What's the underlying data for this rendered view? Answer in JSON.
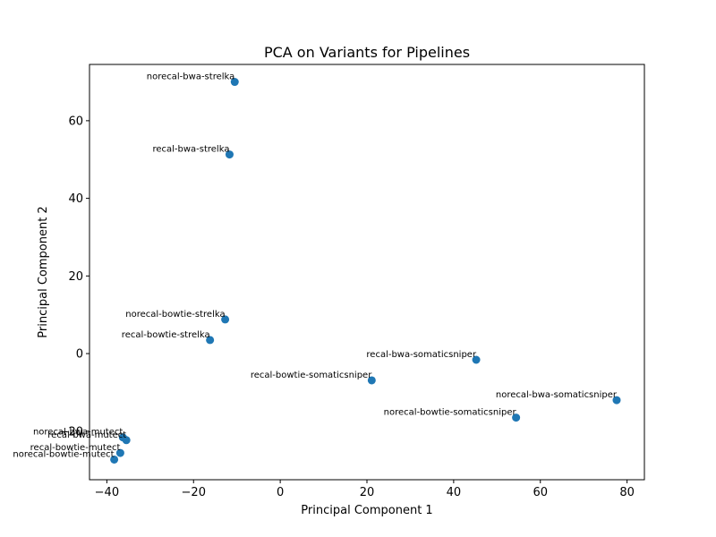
{
  "chart_data": {
    "type": "scatter",
    "title": "PCA on Variants for Pipelines",
    "xlabel": "Principal Component 1",
    "ylabel": "Principal Component 2",
    "xlim": [
      -44,
      84
    ],
    "ylim": [
      -32.5,
      74.5
    ],
    "xticks": [
      -40,
      -20,
      0,
      20,
      40,
      60,
      80
    ],
    "yticks": [
      -20,
      0,
      20,
      40,
      60
    ],
    "grid": false,
    "marker_color": "#1f77b4",
    "points": [
      {
        "label": "norecal-bwa-strelka",
        "x": -10.5,
        "y": 70.0
      },
      {
        "label": "recal-bwa-strelka",
        "x": -11.7,
        "y": 51.3
      },
      {
        "label": "norecal-bowtie-strelka",
        "x": -12.7,
        "y": 8.8
      },
      {
        "label": "recal-bowtie-strelka",
        "x": -16.2,
        "y": 3.5
      },
      {
        "label": "recal-bwa-somaticsniper",
        "x": 45.2,
        "y": -1.6
      },
      {
        "label": "recal-bowtie-somaticsniper",
        "x": 21.1,
        "y": -6.9
      },
      {
        "label": "norecal-bwa-somaticsniper",
        "x": 77.6,
        "y": -12.0
      },
      {
        "label": "norecal-bowtie-somaticsniper",
        "x": 54.4,
        "y": -16.5
      },
      {
        "label": "norecal-bwa-mutect",
        "x": -36.3,
        "y": -21.6
      },
      {
        "label": "recal-bwa-mutect",
        "x": -35.5,
        "y": -22.3
      },
      {
        "label": "recal-bowtie-mutect",
        "x": -36.9,
        "y": -25.6
      },
      {
        "label": "norecal-bowtie-mutect",
        "x": -38.3,
        "y": -27.3
      }
    ]
  }
}
